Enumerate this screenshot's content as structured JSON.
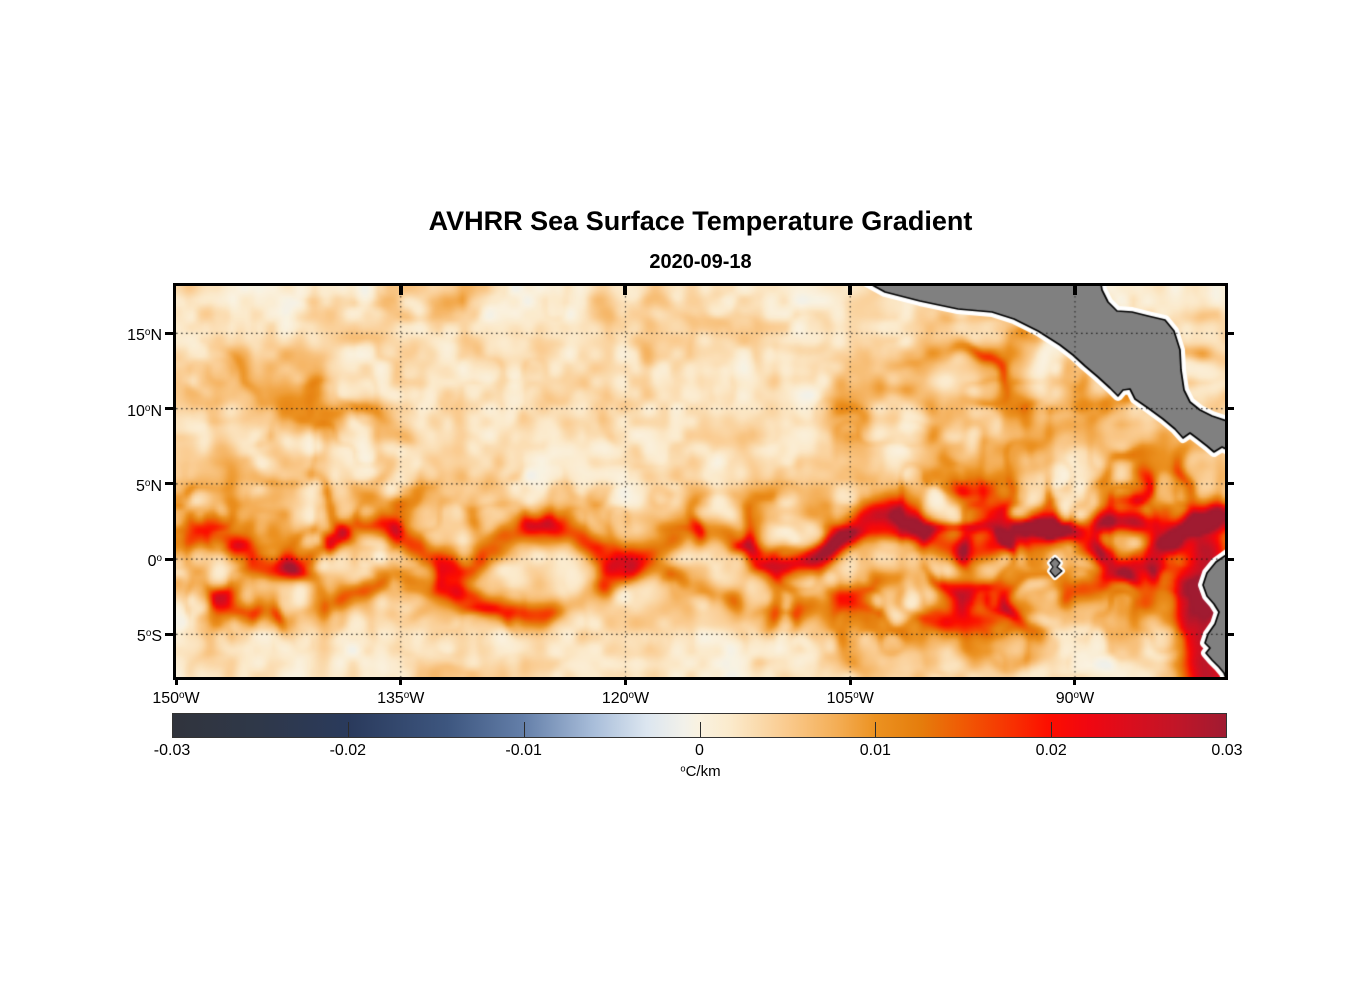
{
  "figure": {
    "title": "AVHRR Sea Surface Temperature Gradient",
    "subtitle": "2020-09-18",
    "background": "#ffffff"
  },
  "chart_data": {
    "type": "heatmap",
    "title": "AVHRR Sea Surface Temperature Gradient",
    "subtitle": "2020-09-18",
    "x_axis": {
      "quantity": "longitude",
      "range_deg": [
        -150,
        -79.9
      ],
      "ticks": [
        {
          "label": "150°W",
          "lon": -150
        },
        {
          "label": "135°W",
          "lon": -135
        },
        {
          "label": "120°W",
          "lon": -120
        },
        {
          "label": "105°W",
          "lon": -105
        },
        {
          "label": "90°W",
          "lon": -90
        }
      ]
    },
    "y_axis": {
      "quantity": "latitude",
      "range_deg": [
        18.15,
        -7.84
      ],
      "ticks": [
        {
          "label": "15°N",
          "lat": 15
        },
        {
          "label": "10°N",
          "lat": 10
        },
        {
          "label": "5°N",
          "lat": 5
        },
        {
          "label": "0°",
          "lat": 0
        },
        {
          "label": "5°S",
          "lat": -5
        }
      ]
    },
    "grid": {
      "style": "dotted",
      "color": "#1a1a1a"
    },
    "colorbar": {
      "label": "°C/km",
      "range": [
        -0.03,
        0.03
      ],
      "tick_values": [
        -0.03,
        -0.02,
        -0.01,
        0,
        0.01,
        0.02,
        0.03
      ],
      "tick_labels": [
        "-0.03",
        "-0.02",
        "-0.01",
        "0",
        "0.01",
        "0.02",
        "0.03"
      ],
      "inner_tick_values": [
        -0.02,
        -0.01,
        0,
        0.01,
        0.02
      ],
      "stops": [
        {
          "t": 0.0,
          "color": "#30343D"
        },
        {
          "t": 0.08,
          "color": "#2F3849"
        },
        {
          "t": 0.167,
          "color": "#2A3A5C"
        },
        {
          "t": 0.26,
          "color": "#3D567F"
        },
        {
          "t": 0.333,
          "color": "#647FA9"
        },
        {
          "t": 0.4,
          "color": "#A9BEDA"
        },
        {
          "t": 0.45,
          "color": "#DCE6F0"
        },
        {
          "t": 0.485,
          "color": "#F2F1EA"
        },
        {
          "t": 0.5,
          "color": "#FAF2E0"
        },
        {
          "t": 0.53,
          "color": "#FBEACB"
        },
        {
          "t": 0.58,
          "color": "#FACC91"
        },
        {
          "t": 0.63,
          "color": "#F4AE56"
        },
        {
          "t": 0.667,
          "color": "#EC9221"
        },
        {
          "t": 0.71,
          "color": "#E57D0C"
        },
        {
          "t": 0.75,
          "color": "#F05A04"
        },
        {
          "t": 0.8,
          "color": "#F82E01"
        },
        {
          "t": 0.833,
          "color": "#FD0D00"
        },
        {
          "t": 0.87,
          "color": "#F00711"
        },
        {
          "t": 0.91,
          "color": "#D90E1D"
        },
        {
          "t": 0.95,
          "color": "#C31527"
        },
        {
          "t": 1.0,
          "color": "#A01B31"
        }
      ]
    },
    "land": {
      "fill": "#808080",
      "outline": "#000000",
      "coast_buffer": "#ffffff",
      "polygons": {
        "central-america": [
          [
            687,
            -6
          ],
          [
            709,
            6
          ],
          [
            744,
            15
          ],
          [
            782,
            23
          ],
          [
            816,
            26
          ],
          [
            838,
            33
          ],
          [
            862,
            45
          ],
          [
            884,
            59
          ],
          [
            897,
            69
          ],
          [
            909,
            80
          ],
          [
            922,
            91
          ],
          [
            934,
            102
          ],
          [
            942,
            110
          ],
          [
            947,
            104
          ],
          [
            954,
            103
          ],
          [
            959,
            113
          ],
          [
            972,
            122
          ],
          [
            987,
            133
          ],
          [
            999,
            143
          ],
          [
            1007,
            152
          ],
          [
            1014,
            147
          ],
          [
            1022,
            153
          ],
          [
            1031,
            160
          ],
          [
            1038,
            166
          ],
          [
            1046,
            161
          ],
          [
            1060,
            168
          ],
          [
            1060,
            138
          ],
          [
            1036,
            130
          ],
          [
            1024,
            124
          ],
          [
            1014,
            116
          ],
          [
            1008,
            104
          ],
          [
            1005,
            84
          ],
          [
            1004,
            64
          ],
          [
            998,
            45
          ],
          [
            989,
            34
          ],
          [
            972,
            30
          ],
          [
            956,
            26
          ],
          [
            941,
            25
          ],
          [
            932,
            16
          ],
          [
            926,
            4
          ],
          [
            924,
            -8
          ]
        ],
        "south-america": [
          [
            1060,
            262
          ],
          [
            1040,
            276
          ],
          [
            1031,
            287
          ],
          [
            1027,
            299
          ],
          [
            1031,
            310
          ],
          [
            1038,
            318
          ],
          [
            1043,
            326
          ],
          [
            1039,
            338
          ],
          [
            1032,
            348
          ],
          [
            1029,
            357
          ],
          [
            1034,
            362
          ],
          [
            1030,
            367
          ],
          [
            1036,
            374
          ],
          [
            1043,
            381
          ],
          [
            1048,
            387
          ],
          [
            1052,
            398
          ],
          [
            1065,
            398
          ],
          [
            1065,
            262
          ]
        ],
        "galapagos": [
          [
            874,
            277
          ],
          [
            879,
            272
          ],
          [
            884,
            277
          ],
          [
            881,
            281
          ],
          [
            886,
            285
          ],
          [
            879,
            291
          ],
          [
            874,
            285
          ],
          [
            877,
            281
          ]
        ]
      }
    },
    "field_units": "°C/km",
    "value_clamp": [
      -0.004,
      0.0312
    ],
    "features": {
      "background_mottle": {
        "min": -0.001,
        "max": 0.005
      },
      "filament_bands": [
        {
          "name": "north-equatorial-front-zone",
          "lat_center": 3.0,
          "lat_sigma": 2.6,
          "amp": 0.009
        },
        {
          "name": "south-equatorial-zone",
          "lat_center": -3.2,
          "lat_sigma": 2.4,
          "amp": 0.0065
        },
        {
          "name": "north-tropical-zone",
          "lat_center": 11.0,
          "lat_sigma": 4.5,
          "amp": 0.003
        }
      ],
      "tiw_north_band": {
        "lat_mean": 1.1,
        "wave_amp": 1.45,
        "wave_k": 0.55,
        "phase0": 0.8,
        "amp_base": 0.013,
        "amp_noise": 0.011,
        "amp_east_boost": 0.008,
        "east_center_lon": -97,
        "east_sigma_lon": 16,
        "width_deg": 0.75
      },
      "tiw_south_band": {
        "lat_mean": -2.4,
        "wave_amp": 1.0,
        "wave_k": 0.38,
        "phase0": 2.1,
        "amp_base": 0.006,
        "amp_noise": 0.007,
        "width_deg": 0.85
      },
      "ecuador_coastal_front": {
        "lon": -81.3,
        "lat_top": 0.5,
        "amp": 0.024,
        "sigma_deg": 1.6
      },
      "regional_blobs": [
        {
          "name": "tehuantepec",
          "lon": -95.5,
          "lat": 13.3,
          "amp": 0.0075,
          "sx": 2.6,
          "sy": 2.0
        },
        {
          "name": "papagayo",
          "lon": -87.0,
          "lat": 9.0,
          "amp": 0.009,
          "sx": 3.2,
          "sy": 2.6
        },
        {
          "name": "costa-rica-dome",
          "lon": -84.0,
          "lat": 5.0,
          "amp": 0.01,
          "sx": 3.0,
          "sy": 2.8
        }
      ]
    }
  }
}
